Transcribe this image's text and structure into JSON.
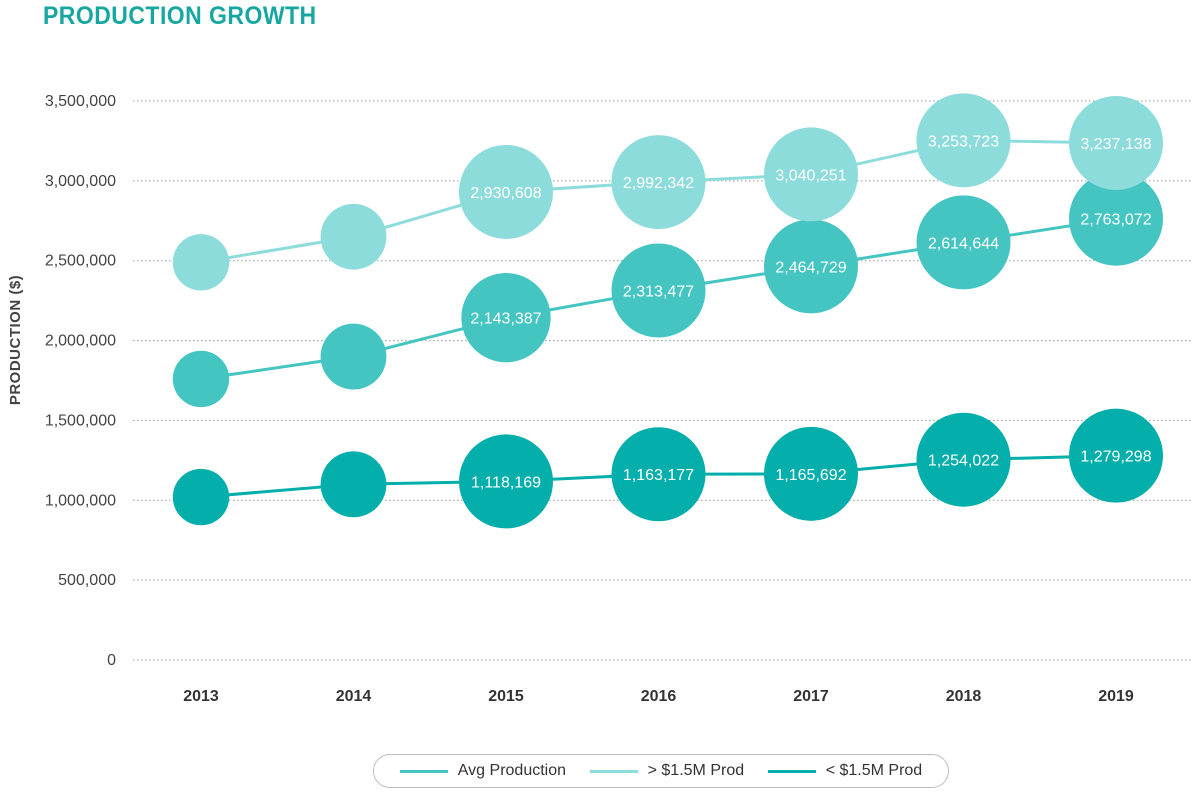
{
  "title": "PRODUCTION GROWTH",
  "chart_data": {
    "type": "bubble-line",
    "categories": [
      "2013",
      "2014",
      "2015",
      "2016",
      "2017",
      "2018",
      "2019"
    ],
    "ylabel": "PRODUCTION ($)",
    "xlabel": "",
    "ylim": [
      0,
      3500000
    ],
    "yticks": [
      "0",
      "500,000",
      "1,000,000",
      "1,500,000",
      "2,000,000",
      "2,500,000",
      "3,000,000",
      "3,500,000"
    ],
    "ytick_values": [
      0,
      500000,
      1000000,
      1500000,
      2000000,
      2500000,
      3000000,
      3500000
    ],
    "grid": "horizontal dotted",
    "legend_position": "bottom-center",
    "series": [
      {
        "name": "Avg Production",
        "color": "#45c5c2",
        "values": [
          1760000,
          1900000,
          2143387,
          2313477,
          2464729,
          2614644,
          2763072
        ],
        "labels": [
          "",
          "",
          "2,143,387",
          "2,313,477",
          "2,464,729",
          "2,614,644",
          "2,763,072"
        ],
        "bubble_scale": [
          0.6,
          0.7,
          0.95,
          1.0,
          1.0,
          1.0,
          1.0
        ]
      },
      {
        "name": "> $1.5M Prod",
        "color": "#8ddcdc",
        "values": [
          2490000,
          2650000,
          2930608,
          2992342,
          3040251,
          3253723,
          3237138
        ],
        "labels": [
          "",
          "",
          "2,930,608",
          "2,992,342",
          "3,040,251",
          "3,253,723",
          "3,237,138"
        ],
        "bubble_scale": [
          0.6,
          0.7,
          1.0,
          1.0,
          1.0,
          1.0,
          1.0
        ]
      },
      {
        "name": "< $1.5M Prod",
        "color": "#04aeaa",
        "values": [
          1020000,
          1100000,
          1118169,
          1163177,
          1165692,
          1254022,
          1279298
        ],
        "labels": [
          "",
          "",
          "1,118,169",
          "1,163,177",
          "1,165,692",
          "1,254,022",
          "1,279,298"
        ],
        "bubble_scale": [
          0.6,
          0.7,
          1.0,
          1.0,
          1.0,
          1.0,
          1.0
        ]
      }
    ]
  }
}
